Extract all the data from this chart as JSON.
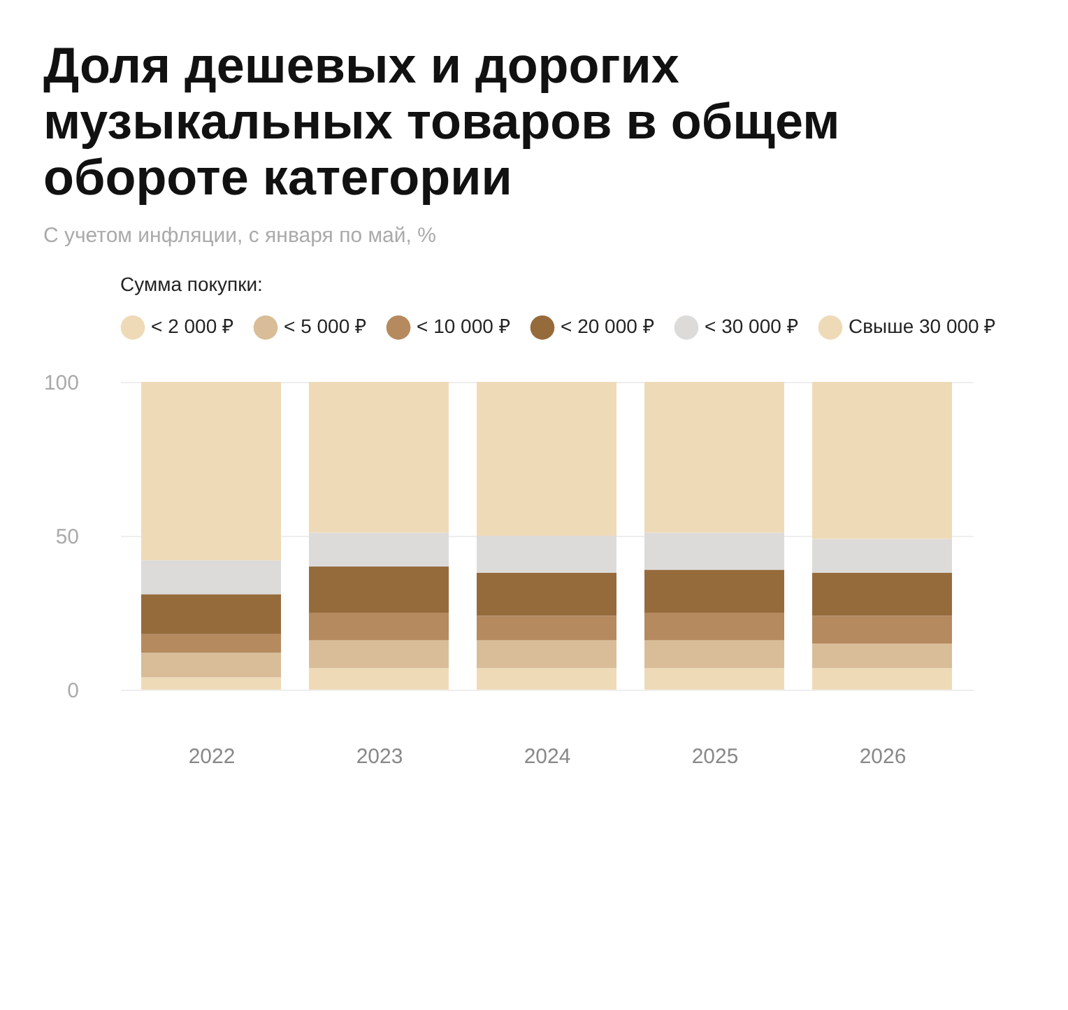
{
  "chart_data": {
    "type": "bar",
    "stacked": true,
    "title": "Доля дешевых и дорогих музыкальных товаров в общем обороте категории",
    "subtitle": "С учетом инфляции, с января по май, %",
    "legend_title": "Сумма покупки:",
    "categories": [
      "2022",
      "2023",
      "2024",
      "2025",
      "2026"
    ],
    "series": [
      {
        "name": "< 2 000 ₽",
        "color": "#efdab8",
        "values": [
          4,
          7,
          7,
          7,
          7
        ]
      },
      {
        "name": "< 5 000 ₽",
        "color": "#d8bd98",
        "values": [
          8,
          9,
          9,
          9,
          8
        ]
      },
      {
        "name": "< 10 000 ₽",
        "color": "#b58a5f",
        "values": [
          6,
          9,
          8,
          9,
          9
        ]
      },
      {
        "name": "< 20 000 ₽",
        "color": "#966b3c",
        "values": [
          13,
          15,
          14,
          14,
          14
        ]
      },
      {
        "name": "< 30 000 ₽",
        "color": "#dcdbda",
        "values": [
          11,
          11,
          12,
          12,
          11
        ]
      },
      {
        "name": "Свыше 30 000 ₽",
        "color": "#efdab8",
        "values": [
          58,
          49,
          50,
          49,
          51
        ]
      }
    ],
    "ylim": [
      0,
      100
    ],
    "yticks": [
      0,
      50,
      100
    ],
    "grid": "y",
    "legend": "top"
  }
}
